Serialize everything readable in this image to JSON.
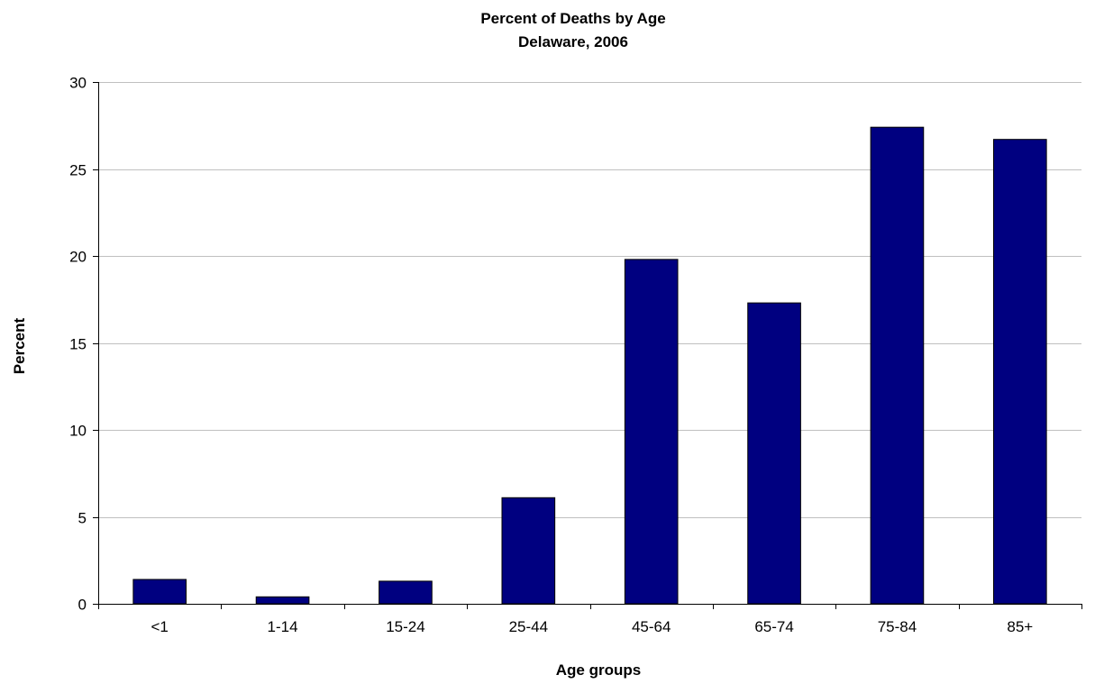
{
  "chart_data": {
    "type": "bar",
    "title": "Percent of Deaths by Age",
    "subtitle": "Delaware, 2006",
    "xlabel": "Age groups",
    "ylabel": "Percent",
    "categories": [
      "<1",
      "1-14",
      "15-24",
      "25-44",
      "45-64",
      "65-74",
      "75-84",
      "85+"
    ],
    "values": [
      1.4,
      0.4,
      1.3,
      6.1,
      19.8,
      17.3,
      27.4,
      26.7
    ],
    "ylim": [
      0,
      30
    ],
    "yticks": [
      0,
      5,
      10,
      15,
      20,
      25,
      30
    ],
    "grid": true,
    "legend": "none",
    "colors": {
      "bar": "#000080",
      "grid": "#c0c0c0",
      "axis": "#000000"
    }
  }
}
